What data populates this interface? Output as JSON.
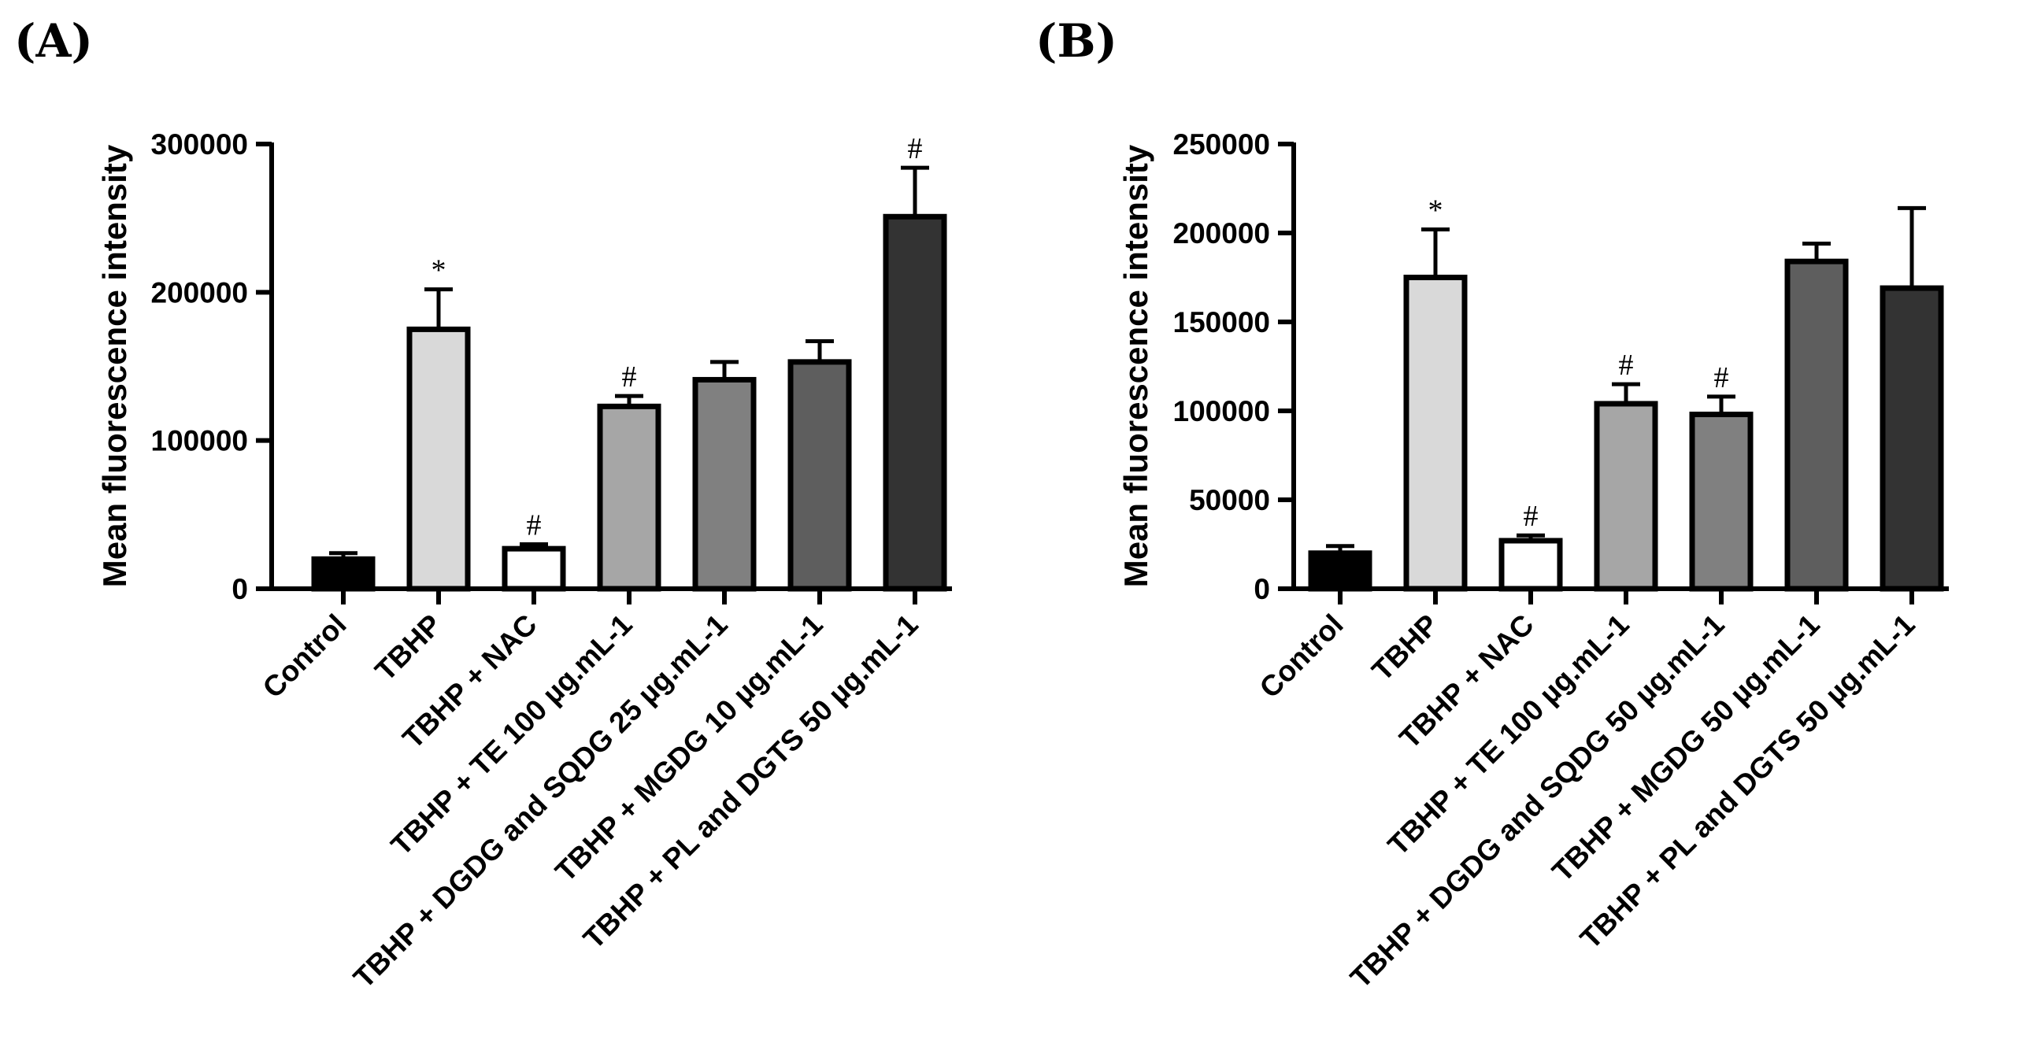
{
  "chart_data": [
    {
      "type": "bar",
      "panel_label": "(A)",
      "ylabel": "Mean fluorescence intensity",
      "xlabel": "",
      "ylim": [
        0,
        300000
      ],
      "yticks": [
        0,
        100000,
        200000,
        300000
      ],
      "ytick_labels": [
        "0",
        "100000",
        "200000",
        "300000"
      ],
      "categories": [
        "Control",
        "TBHP",
        "TBHP + NAC",
        "TBHP + TE 100 µg.mL-1",
        "TBHP + DGDG and SQDG 25 µg.mL-1",
        "TBHP + MGDG 10 µg.mL-1",
        "TBHP + PL and DGTS 50 µg.mL-1"
      ],
      "values": [
        20000,
        175000,
        27000,
        123000,
        141000,
        153000,
        251000
      ],
      "errors": [
        4000,
        27000,
        3000,
        7000,
        12000,
        14000,
        33000
      ],
      "fills": [
        "#000000",
        "#d9d9d9",
        "#ffffff",
        "#a6a6a6",
        "#808080",
        "#5e5e5e",
        "#333333"
      ],
      "annotations": [
        "",
        "*",
        "#",
        "#",
        "",
        "",
        "#"
      ]
    },
    {
      "type": "bar",
      "panel_label": "(B)",
      "ylabel": "Mean fluorescence intensity",
      "xlabel": "",
      "ylim": [
        0,
        250000
      ],
      "yticks": [
        0,
        50000,
        100000,
        150000,
        200000,
        250000
      ],
      "ytick_labels": [
        "0",
        "50000",
        "100000",
        "150000",
        "200000",
        "250000"
      ],
      "categories": [
        "Control",
        "TBHP",
        "TBHP + NAC",
        "TBHP + TE 100 µg.mL-1",
        "TBHP + DGDG and SQDG 50 µg.mL-1",
        "TBHP + MGDG 50 µg.mL-1",
        "TBHP + PL and DGTS 50 µg.mL-1"
      ],
      "values": [
        20000,
        175000,
        27000,
        104000,
        98000,
        184000,
        169000
      ],
      "errors": [
        4000,
        27000,
        3000,
        11000,
        10000,
        10000,
        45000
      ],
      "fills": [
        "#000000",
        "#d9d9d9",
        "#ffffff",
        "#a6a6a6",
        "#808080",
        "#5e5e5e",
        "#333333"
      ],
      "annotations": [
        "",
        "*",
        "#",
        "#",
        "#",
        "",
        ""
      ]
    }
  ]
}
